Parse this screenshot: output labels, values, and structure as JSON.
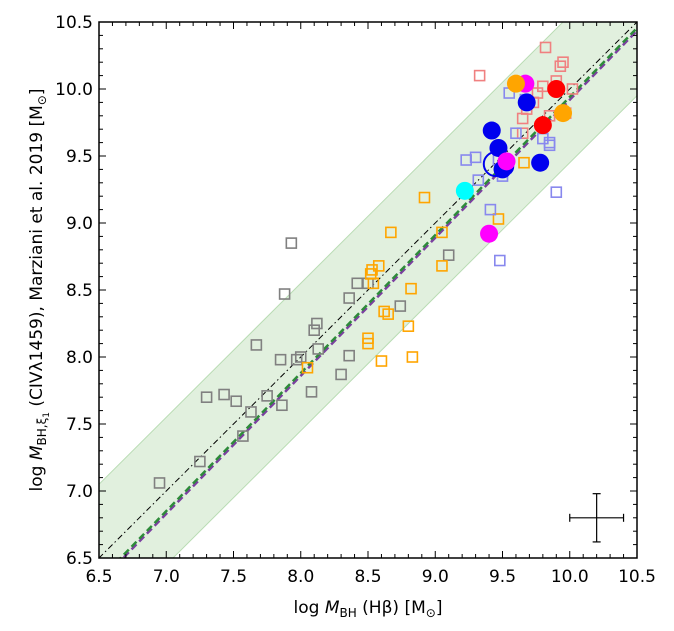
{
  "chart_data": {
    "type": "scatter",
    "xlabel": "log M_BH (Hβ) [M⊙]",
    "ylabel": "log M_BH,ξ1 (CIVλ1459), Marziani et al. 2019 [M⊙]",
    "xlabel_parts": {
      "pre": "log ",
      "m": "M",
      "sub": "BH",
      "post": " (Hβ) [M",
      "sun": "⊙",
      "end": "]"
    },
    "ylabel_parts": {
      "pre": "log ",
      "m": "M",
      "sub": "BH,ξ",
      "subsub": "1",
      "post": " (CIVλ1459), Marziani et al. 2019 [M",
      "sun": "⊙",
      "end": "]"
    },
    "xlim": [
      6.5,
      10.5
    ],
    "ylim": [
      6.5,
      10.5
    ],
    "xticks": [
      "6.5",
      "7.0",
      "7.5",
      "8.0",
      "8.5",
      "9.0",
      "9.5",
      "10.0",
      "10.5"
    ],
    "yticks": [
      "6.5",
      "7.0",
      "7.5",
      "8.0",
      "8.5",
      "9.0",
      "9.5",
      "10.0",
      "10.5"
    ],
    "band": {
      "offset": 0.55,
      "color": "#d9ecd6"
    },
    "lines": [
      {
        "name": "one-to-one",
        "style": "dashdot",
        "color": "#000000",
        "slope": 1.0,
        "intercept": 0.0
      },
      {
        "name": "fit-purple",
        "style": "dashed",
        "color": "#7b3fa0",
        "slope": 1.03,
        "intercept": -0.38
      },
      {
        "name": "fit-green",
        "style": "dashed",
        "color": "#2e8b3a",
        "slope": 1.03,
        "intercept": -0.36
      }
    ],
    "error_bar": {
      "x": 10.2,
      "y": 6.8,
      "dx": 0.2,
      "dy": 0.18
    },
    "colors": {
      "gray": "#808080",
      "orange": "#ffa500",
      "salmon": "#f08080",
      "lightblue": "#8888ee",
      "blue": "#0000ee",
      "red": "#ff0000",
      "magenta": "#ff00ff",
      "cyan": "#00ffff",
      "goldorange": "#ffa500"
    },
    "series": [
      {
        "name": "gray-squares",
        "marker": "open-square",
        "color": "#808080",
        "points": [
          [
            6.95,
            7.06
          ],
          [
            7.25,
            7.22
          ],
          [
            7.3,
            7.7
          ],
          [
            7.43,
            7.72
          ],
          [
            7.52,
            7.67
          ],
          [
            7.57,
            7.41
          ],
          [
            7.63,
            7.59
          ],
          [
            7.67,
            8.09
          ],
          [
            7.75,
            7.71
          ],
          [
            7.85,
            7.98
          ],
          [
            7.86,
            7.64
          ],
          [
            7.88,
            8.47
          ],
          [
            7.93,
            8.85
          ],
          [
            7.97,
            7.98
          ],
          [
            8.0,
            8.0
          ],
          [
            8.08,
            7.74
          ],
          [
            8.1,
            8.2
          ],
          [
            8.12,
            8.25
          ],
          [
            8.13,
            8.06
          ],
          [
            8.3,
            7.87
          ],
          [
            8.36,
            8.01
          ],
          [
            8.36,
            8.44
          ],
          [
            8.42,
            8.55
          ],
          [
            8.5,
            8.55
          ],
          [
            8.74,
            8.38
          ],
          [
            9.1,
            8.76
          ]
        ]
      },
      {
        "name": "orange-squares",
        "marker": "open-square",
        "color": "#ffa500",
        "points": [
          [
            8.05,
            7.92
          ],
          [
            8.5,
            8.14
          ],
          [
            8.5,
            8.1
          ],
          [
            8.52,
            8.62
          ],
          [
            8.53,
            8.65
          ],
          [
            8.54,
            8.55
          ],
          [
            8.58,
            8.68
          ],
          [
            8.6,
            7.97
          ],
          [
            8.62,
            8.34
          ],
          [
            8.65,
            8.32
          ],
          [
            8.67,
            8.93
          ],
          [
            8.8,
            8.23
          ],
          [
            8.82,
            8.51
          ],
          [
            8.83,
            8.0
          ],
          [
            8.92,
            9.19
          ],
          [
            9.05,
            8.93
          ],
          [
            9.05,
            8.68
          ],
          [
            9.47,
            9.03
          ],
          [
            9.66,
            9.45
          ]
        ]
      },
      {
        "name": "salmon-squares",
        "marker": "open-square",
        "color": "#f08080",
        "points": [
          [
            9.33,
            10.1
          ],
          [
            9.65,
            9.78
          ],
          [
            9.68,
            9.85
          ],
          [
            9.73,
            9.9
          ],
          [
            9.76,
            9.97
          ],
          [
            9.8,
            10.02
          ],
          [
            9.82,
            10.31
          ],
          [
            9.85,
            9.8
          ],
          [
            9.9,
            10.06
          ],
          [
            9.93,
            10.17
          ],
          [
            9.95,
            10.2
          ],
          [
            9.97,
            9.82
          ],
          [
            10.02,
            10.0
          ],
          [
            9.65,
            9.67
          ]
        ]
      },
      {
        "name": "lightblue-squares",
        "marker": "open-square",
        "color": "#8888ee",
        "points": [
          [
            9.23,
            9.47
          ],
          [
            9.3,
            9.49
          ],
          [
            9.32,
            9.32
          ],
          [
            9.41,
            9.1
          ],
          [
            9.48,
            8.72
          ],
          [
            9.55,
            9.97
          ],
          [
            9.6,
            9.67
          ],
          [
            9.67,
            9.92
          ],
          [
            9.8,
            9.63
          ],
          [
            9.85,
            9.6
          ],
          [
            9.85,
            9.58
          ],
          [
            9.9,
            9.23
          ],
          [
            9.47,
            9.47
          ],
          [
            9.5,
            9.35
          ]
        ]
      },
      {
        "name": "open-blue-circle",
        "marker": "open-circle",
        "color": "#0000ee",
        "points": [
          [
            9.45,
            9.44
          ]
        ]
      },
      {
        "name": "blue-circles",
        "marker": "filled-circle",
        "color": "#0000ee",
        "points": [
          [
            9.42,
            9.69
          ],
          [
            9.47,
            9.56
          ],
          [
            9.5,
            9.4
          ],
          [
            9.52,
            9.42
          ],
          [
            9.68,
            9.9
          ],
          [
            9.78,
            9.45
          ]
        ]
      },
      {
        "name": "red-circles",
        "marker": "filled-circle",
        "color": "#ff0000",
        "points": [
          [
            9.8,
            9.73
          ],
          [
            9.9,
            10.0
          ]
        ]
      },
      {
        "name": "magenta-circles",
        "marker": "filled-circle",
        "color": "#ff00ff",
        "points": [
          [
            9.4,
            8.92
          ],
          [
            9.53,
            9.46
          ],
          [
            9.67,
            10.04
          ]
        ]
      },
      {
        "name": "cyan-circles",
        "marker": "filled-circle",
        "color": "#00ffff",
        "points": [
          [
            9.22,
            9.24
          ]
        ]
      },
      {
        "name": "orange-circles",
        "marker": "filled-circle",
        "color": "#ffa500",
        "points": [
          [
            9.6,
            10.04
          ],
          [
            9.95,
            9.82
          ]
        ]
      }
    ]
  }
}
